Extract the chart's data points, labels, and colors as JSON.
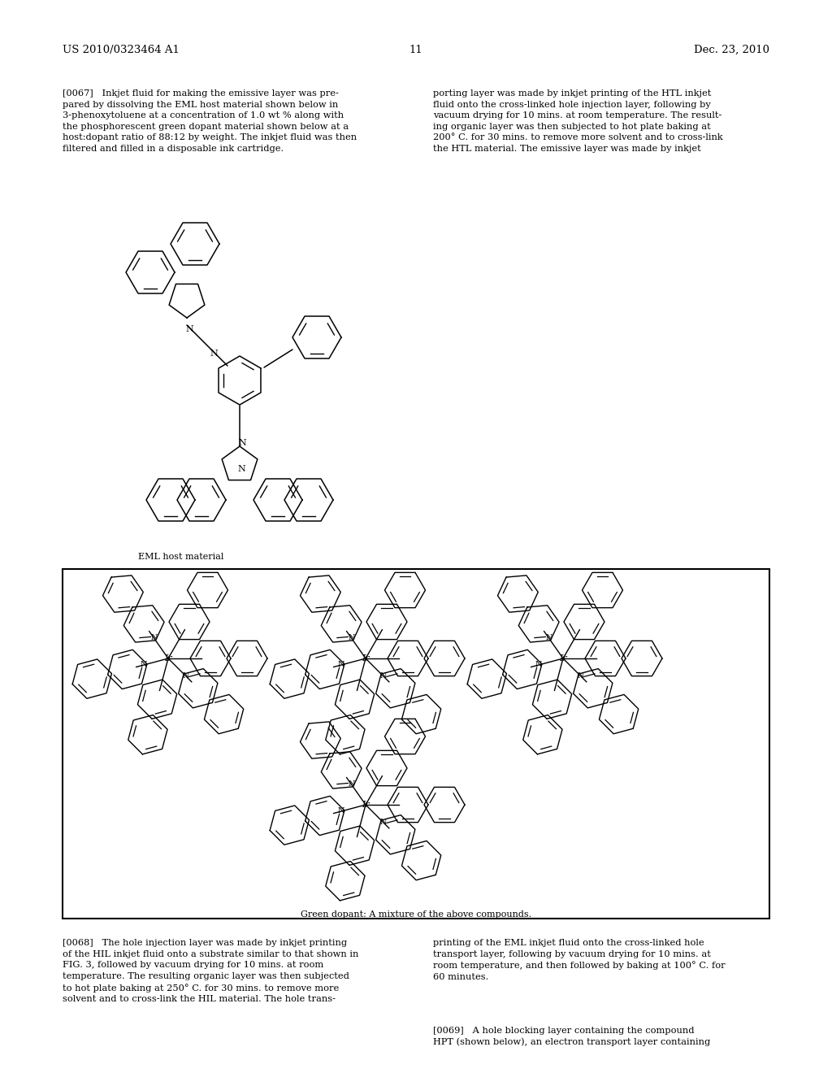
{
  "background_color": "#ffffff",
  "header_left": "US 2010/0323464 A1",
  "header_center": "11",
  "header_right": "Dec. 23, 2010",
  "para_0067_left": "[0067]   Inkjet fluid for making the emissive layer was pre-\npared by dissolving the EML host material shown below in\n3-phenoxytoluene at a concentration of 1.0 wt % along with\nthe phosphorescent green dopant material shown below at a\nhost:dopant ratio of 88:12 by weight. The inkjet fluid was then\nfiltered and filled in a disposable ink cartridge.",
  "para_0067_right": "porting layer was made by inkjet printing of the HTL inkjet\nfluid onto the cross-linked hole injection layer, following by\nvacuum drying for 10 mins. at room temperature. The result-\ning organic layer was then subjected to hot plate baking at\n200° C. for 30 mins. to remove more solvent and to cross-link\nthe HTL material. The emissive layer was made by inkjet",
  "eml_label": "EML host material",
  "green_dopant_label": "Green dopant: A mixture of the above compounds.",
  "para_0068_left": "[0068]   The hole injection layer was made by inkjet printing\nof the HIL inkjet fluid onto a substrate similar to that shown in\nFIG. 3, followed by vacuum drying for 10 mins. at room\ntemperature. The resulting organic layer was then subjected\nto hot plate baking at 250° C. for 30 mins. to remove more\nsolvent and to cross-link the HIL material. The hole trans-",
  "para_0068_right": "printing of the EML inkjet fluid onto the cross-linked hole\ntransport layer, following by vacuum drying for 10 mins. at\nroom temperature, and then followed by baking at 100° C. for\n60 minutes.",
  "para_0069": "[0069]   A hole blocking layer containing the compound\nHPT (shown below), an electron transport layer containing"
}
